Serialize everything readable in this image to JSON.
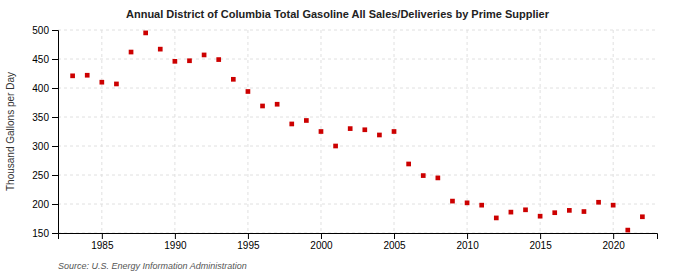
{
  "chart_data": {
    "type": "scatter",
    "title": "Annual District of Columbia Total Gasoline All Sales/Deliveries by Prime Supplier",
    "ylabel": "Thousand Gallons per Day",
    "source": "Source: U.S. Energy Information Administration",
    "color": "#cc0000",
    "marker": "square",
    "x": [
      1983,
      1984,
      1985,
      1986,
      1987,
      1988,
      1989,
      1990,
      1991,
      1992,
      1993,
      1994,
      1995,
      1996,
      1997,
      1998,
      1999,
      2000,
      2001,
      2002,
      2003,
      2004,
      2005,
      2006,
      2007,
      2008,
      2009,
      2010,
      2011,
      2012,
      2013,
      2014,
      2015,
      2016,
      2017,
      2018,
      2019,
      2020,
      2021,
      2022
    ],
    "values": [
      421,
      422,
      410,
      407,
      462,
      495,
      467,
      446,
      447,
      457,
      449,
      415,
      394,
      369,
      372,
      338,
      344,
      325,
      300,
      330,
      328,
      319,
      325,
      269,
      249,
      245,
      205,
      202,
      198,
      176,
      186,
      190,
      179,
      185,
      189,
      187,
      203,
      198,
      155,
      178
    ],
    "xlim": [
      1982,
      2023
    ],
    "ylim": [
      150,
      500
    ],
    "xticks": [
      1985,
      1990,
      1995,
      2000,
      2005,
      2010,
      2015,
      2020
    ],
    "yticks": [
      150,
      200,
      250,
      300,
      350,
      400,
      450,
      500
    ],
    "grid": true
  }
}
